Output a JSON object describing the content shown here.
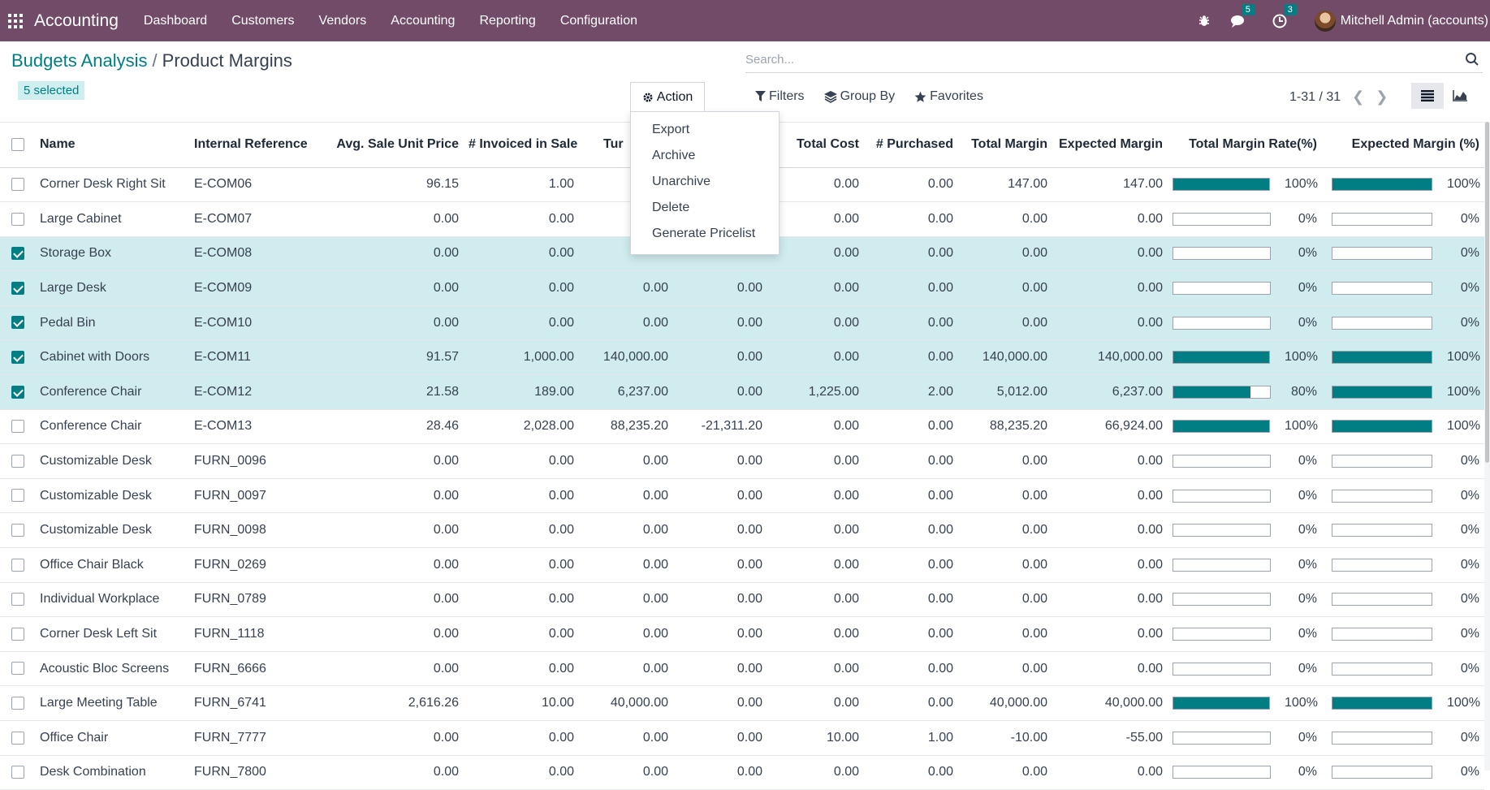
{
  "navbar": {
    "app_name": "Accounting",
    "menu": [
      "Dashboard",
      "Customers",
      "Vendors",
      "Accounting",
      "Reporting",
      "Configuration"
    ],
    "messages_count": "5",
    "activities_count": "3",
    "user": "Mitchell Admin (accounts)"
  },
  "breadcrumb": {
    "parent": "Budgets Analysis",
    "separator": "/",
    "current": "Product Margins"
  },
  "selection": {
    "label": "5 selected"
  },
  "search": {
    "placeholder": "Search..."
  },
  "filters": {
    "filters": "Filters",
    "group_by": "Group By",
    "favorites": "Favorites"
  },
  "pager": {
    "range": "1-31 / 31"
  },
  "action": {
    "label": "Action",
    "items": [
      "Export",
      "Archive",
      "Unarchive",
      "Delete",
      "Generate Pricelist"
    ]
  },
  "table": {
    "columns": [
      "Name",
      "Internal Reference",
      "Avg. Sale Unit Price",
      "# Invoiced in Sale",
      "Tur",
      "",
      "Total Cost",
      "# Purchased",
      "Total Margin",
      "Expected Margin",
      "Total Margin Rate(%)",
      "Expected Margin (%)"
    ],
    "rows": [
      {
        "selected": false,
        "name": "Corner Desk Right Sit",
        "ref": "E-COM06",
        "avg": "96.15",
        "inv": "1.00",
        "tur": "",
        "col6": "",
        "cost": "0.00",
        "purch": "0.00",
        "margin": "147.00",
        "exp": "147.00",
        "rate": 100,
        "rate_label": "100%",
        "exp_rate": 100,
        "exp_rate_label": "100%"
      },
      {
        "selected": false,
        "name": "Large Cabinet",
        "ref": "E-COM07",
        "avg": "0.00",
        "inv": "0.00",
        "tur": "",
        "col6": "",
        "cost": "0.00",
        "purch": "0.00",
        "margin": "0.00",
        "exp": "0.00",
        "rate": 0,
        "rate_label": "0%",
        "exp_rate": 0,
        "exp_rate_label": "0%"
      },
      {
        "selected": true,
        "name": "Storage Box",
        "ref": "E-COM08",
        "avg": "0.00",
        "inv": "0.00",
        "tur": "",
        "col6": "",
        "cost": "0.00",
        "purch": "0.00",
        "margin": "0.00",
        "exp": "0.00",
        "rate": 0,
        "rate_label": "0%",
        "exp_rate": 0,
        "exp_rate_label": "0%"
      },
      {
        "selected": true,
        "name": "Large Desk",
        "ref": "E-COM09",
        "avg": "0.00",
        "inv": "0.00",
        "tur": "0.00",
        "col6": "0.00",
        "cost": "0.00",
        "purch": "0.00",
        "margin": "0.00",
        "exp": "0.00",
        "rate": 0,
        "rate_label": "0%",
        "exp_rate": 0,
        "exp_rate_label": "0%"
      },
      {
        "selected": true,
        "name": "Pedal Bin",
        "ref": "E-COM10",
        "avg": "0.00",
        "inv": "0.00",
        "tur": "0.00",
        "col6": "0.00",
        "cost": "0.00",
        "purch": "0.00",
        "margin": "0.00",
        "exp": "0.00",
        "rate": 0,
        "rate_label": "0%",
        "exp_rate": 0,
        "exp_rate_label": "0%"
      },
      {
        "selected": true,
        "name": "Cabinet with Doors",
        "ref": "E-COM11",
        "avg": "91.57",
        "inv": "1,000.00",
        "tur": "140,000.00",
        "col6": "0.00",
        "cost": "0.00",
        "purch": "0.00",
        "margin": "140,000.00",
        "exp": "140,000.00",
        "rate": 100,
        "rate_label": "100%",
        "exp_rate": 100,
        "exp_rate_label": "100%"
      },
      {
        "selected": true,
        "name": "Conference Chair",
        "ref": "E-COM12",
        "avg": "21.58",
        "inv": "189.00",
        "tur": "6,237.00",
        "col6": "0.00",
        "cost": "1,225.00",
        "purch": "2.00",
        "margin": "5,012.00",
        "exp": "6,237.00",
        "rate": 80,
        "rate_label": "80%",
        "exp_rate": 100,
        "exp_rate_label": "100%"
      },
      {
        "selected": false,
        "name": "Conference Chair",
        "ref": "E-COM13",
        "avg": "28.46",
        "inv": "2,028.00",
        "tur": "88,235.20",
        "col6": "-21,311.20",
        "cost": "0.00",
        "purch": "0.00",
        "margin": "88,235.20",
        "exp": "66,924.00",
        "rate": 100,
        "rate_label": "100%",
        "exp_rate": 100,
        "exp_rate_label": "100%"
      },
      {
        "selected": false,
        "name": "Customizable Desk",
        "ref": "FURN_0096",
        "avg": "0.00",
        "inv": "0.00",
        "tur": "0.00",
        "col6": "0.00",
        "cost": "0.00",
        "purch": "0.00",
        "margin": "0.00",
        "exp": "0.00",
        "rate": 0,
        "rate_label": "0%",
        "exp_rate": 0,
        "exp_rate_label": "0%"
      },
      {
        "selected": false,
        "name": "Customizable Desk",
        "ref": "FURN_0097",
        "avg": "0.00",
        "inv": "0.00",
        "tur": "0.00",
        "col6": "0.00",
        "cost": "0.00",
        "purch": "0.00",
        "margin": "0.00",
        "exp": "0.00",
        "rate": 0,
        "rate_label": "0%",
        "exp_rate": 0,
        "exp_rate_label": "0%"
      },
      {
        "selected": false,
        "name": "Customizable Desk",
        "ref": "FURN_0098",
        "avg": "0.00",
        "inv": "0.00",
        "tur": "0.00",
        "col6": "0.00",
        "cost": "0.00",
        "purch": "0.00",
        "margin": "0.00",
        "exp": "0.00",
        "rate": 0,
        "rate_label": "0%",
        "exp_rate": 0,
        "exp_rate_label": "0%"
      },
      {
        "selected": false,
        "name": "Office Chair Black",
        "ref": "FURN_0269",
        "avg": "0.00",
        "inv": "0.00",
        "tur": "0.00",
        "col6": "0.00",
        "cost": "0.00",
        "purch": "0.00",
        "margin": "0.00",
        "exp": "0.00",
        "rate": 0,
        "rate_label": "0%",
        "exp_rate": 0,
        "exp_rate_label": "0%"
      },
      {
        "selected": false,
        "name": "Individual Workplace",
        "ref": "FURN_0789",
        "avg": "0.00",
        "inv": "0.00",
        "tur": "0.00",
        "col6": "0.00",
        "cost": "0.00",
        "purch": "0.00",
        "margin": "0.00",
        "exp": "0.00",
        "rate": 0,
        "rate_label": "0%",
        "exp_rate": 0,
        "exp_rate_label": "0%"
      },
      {
        "selected": false,
        "name": "Corner Desk Left Sit",
        "ref": "FURN_1118",
        "avg": "0.00",
        "inv": "0.00",
        "tur": "0.00",
        "col6": "0.00",
        "cost": "0.00",
        "purch": "0.00",
        "margin": "0.00",
        "exp": "0.00",
        "rate": 0,
        "rate_label": "0%",
        "exp_rate": 0,
        "exp_rate_label": "0%"
      },
      {
        "selected": false,
        "name": "Acoustic Bloc Screens",
        "ref": "FURN_6666",
        "avg": "0.00",
        "inv": "0.00",
        "tur": "0.00",
        "col6": "0.00",
        "cost": "0.00",
        "purch": "0.00",
        "margin": "0.00",
        "exp": "0.00",
        "rate": 0,
        "rate_label": "0%",
        "exp_rate": 0,
        "exp_rate_label": "0%"
      },
      {
        "selected": false,
        "name": "Large Meeting Table",
        "ref": "FURN_6741",
        "avg": "2,616.26",
        "inv": "10.00",
        "tur": "40,000.00",
        "col6": "0.00",
        "cost": "0.00",
        "purch": "0.00",
        "margin": "40,000.00",
        "exp": "40,000.00",
        "rate": 100,
        "rate_label": "100%",
        "exp_rate": 100,
        "exp_rate_label": "100%"
      },
      {
        "selected": false,
        "name": "Office Chair",
        "ref": "FURN_7777",
        "avg": "0.00",
        "inv": "0.00",
        "tur": "0.00",
        "col6": "0.00",
        "cost": "10.00",
        "purch": "1.00",
        "margin": "-10.00",
        "exp": "-55.00",
        "rate": 0,
        "rate_label": "0%",
        "exp_rate": 0,
        "exp_rate_label": "0%"
      },
      {
        "selected": false,
        "name": "Desk Combination",
        "ref": "FURN_7800",
        "avg": "0.00",
        "inv": "0.00",
        "tur": "0.00",
        "col6": "0.00",
        "cost": "0.00",
        "purch": "0.00",
        "margin": "0.00",
        "exp": "0.00",
        "rate": 0,
        "rate_label": "0%",
        "exp_rate": 0,
        "exp_rate_label": "0%"
      }
    ]
  }
}
